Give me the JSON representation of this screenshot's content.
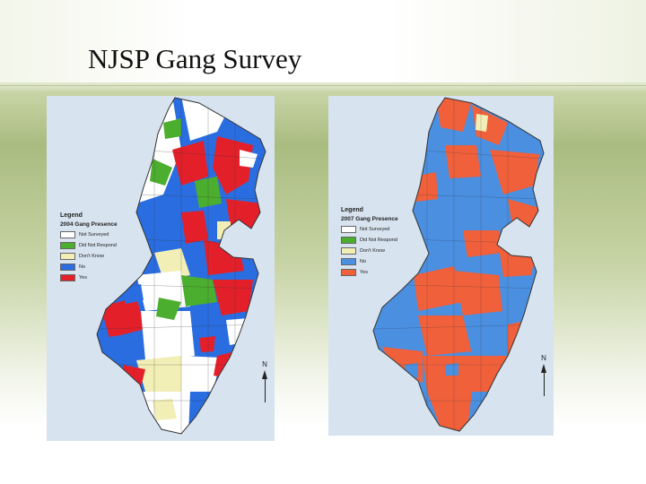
{
  "slide": {
    "title": "NJSP Gang Survey"
  },
  "colors": {
    "not_surveyed": "#ffffff",
    "did_not_respond": "#4cae2e",
    "dont_know": "#f2efb6",
    "no": "#2a6de0",
    "yes": "#e3202a",
    "no_2007": "#4a8fe0",
    "yes_2007": "#f0603a",
    "water": "#d7e3ef"
  },
  "maps": [
    {
      "legend_title": "Legend",
      "legend_subtitle": "2004 Gang Presence",
      "items": [
        {
          "label": "Not Surveyed",
          "color": "#ffffff"
        },
        {
          "label": "Did Not Respond",
          "color": "#4cae2e"
        },
        {
          "label": "Don't Know",
          "color": "#f2efb6"
        },
        {
          "label": "No",
          "color": "#2a6de0"
        },
        {
          "label": "Yes",
          "color": "#e3202a"
        }
      ],
      "north": "N"
    },
    {
      "legend_title": "Legend",
      "legend_subtitle": "2007 Gang Presence",
      "items": [
        {
          "label": "Not Surveyed",
          "color": "#ffffff"
        },
        {
          "label": "Did Not Respond",
          "color": "#4cae2e"
        },
        {
          "label": "Don't Know",
          "color": "#f2efb6"
        },
        {
          "label": "No",
          "color": "#4a8fe0"
        },
        {
          "label": "Yes",
          "color": "#f0603a"
        }
      ],
      "north": "N"
    }
  ]
}
